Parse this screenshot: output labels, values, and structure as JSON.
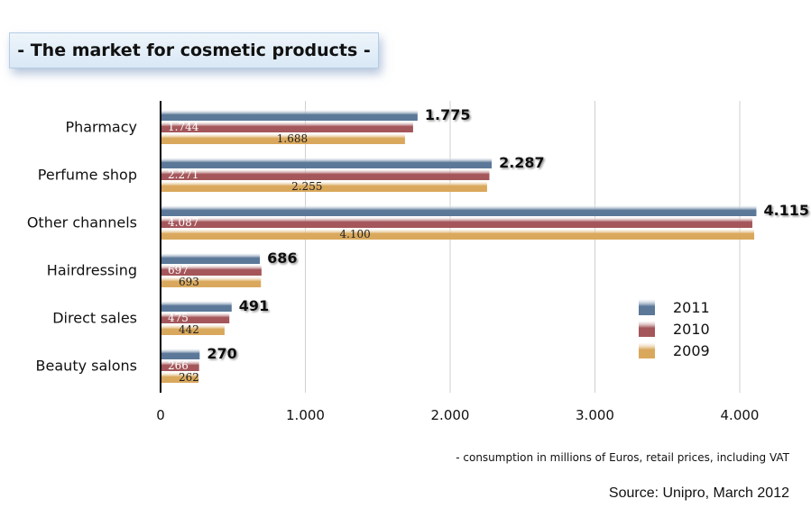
{
  "title": "- The market for cosmetic products -",
  "footnote": "- consumption in millions of Euros, retail prices, including VAT",
  "source": "Source: Unipro, March 2012",
  "colors": {
    "2011": "#5b7898",
    "2010": "#a4565a",
    "2009": "#d9a85c"
  },
  "chart_data": {
    "type": "bar",
    "orientation": "horizontal",
    "title": "- The market for cosmetic products -",
    "categories": [
      "Pharmacy",
      "Perfume shop",
      "Other channels",
      "Hairdressing",
      "Direct sales",
      "Beauty salons"
    ],
    "series": [
      {
        "name": "2011",
        "values": [
          1775,
          2287,
          4115,
          686,
          491,
          270
        ],
        "labels": [
          "1.775",
          "2.287",
          "4.115",
          "686",
          "491",
          "270"
        ]
      },
      {
        "name": "2010",
        "values": [
          1744,
          2271,
          4087,
          697,
          475,
          266
        ],
        "labels": [
          "1.744",
          "2.271",
          "4.087",
          "697",
          "475",
          "266"
        ]
      },
      {
        "name": "2009",
        "values": [
          1688,
          2255,
          4100,
          693,
          442,
          262
        ],
        "labels": [
          "1.688",
          "2.255",
          "4.100",
          "693",
          "442",
          "262"
        ]
      }
    ],
    "xlim": [
      0,
      4000
    ],
    "x_ticks": [
      0,
      1000,
      2000,
      3000,
      4000
    ],
    "x_tick_labels": [
      "0",
      "1.000",
      "2.000",
      "3.000",
      "4.000"
    ],
    "grid": true,
    "legend": "right"
  }
}
